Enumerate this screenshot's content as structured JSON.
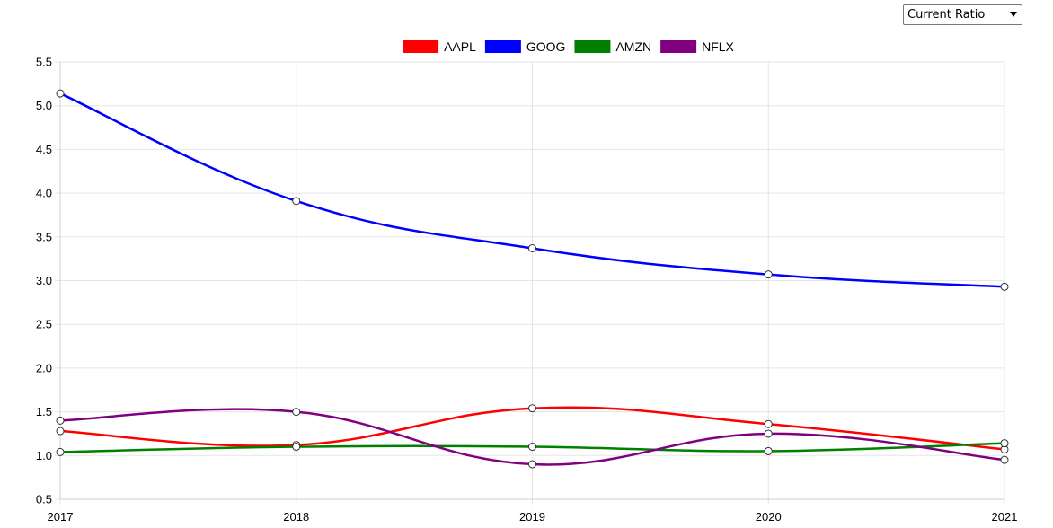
{
  "controls": {
    "metric_select": {
      "selected": "Current Ratio"
    }
  },
  "chart_data": {
    "type": "line",
    "title": "",
    "xlabel": "",
    "ylabel": "",
    "categories": [
      "2017",
      "2018",
      "2019",
      "2020",
      "2021"
    ],
    "ylim": [
      0.5,
      5.5
    ],
    "yticks": [
      "0.5",
      "1.0",
      "1.5",
      "2.0",
      "2.5",
      "3.0",
      "3.5",
      "4.0",
      "4.5",
      "5.0",
      "5.5"
    ],
    "grid": true,
    "legend_position": "top-center",
    "series": [
      {
        "name": "AAPL",
        "color": "#ff0000",
        "values": [
          1.28,
          1.12,
          1.54,
          1.36,
          1.07
        ]
      },
      {
        "name": "GOOG",
        "color": "#0000ff",
        "values": [
          5.14,
          3.91,
          3.37,
          3.07,
          2.93
        ]
      },
      {
        "name": "AMZN",
        "color": "#008000",
        "values": [
          1.04,
          1.1,
          1.1,
          1.05,
          1.14
        ]
      },
      {
        "name": "NFLX",
        "color": "#800080",
        "values": [
          1.4,
          1.5,
          0.9,
          1.25,
          0.95
        ]
      }
    ]
  }
}
